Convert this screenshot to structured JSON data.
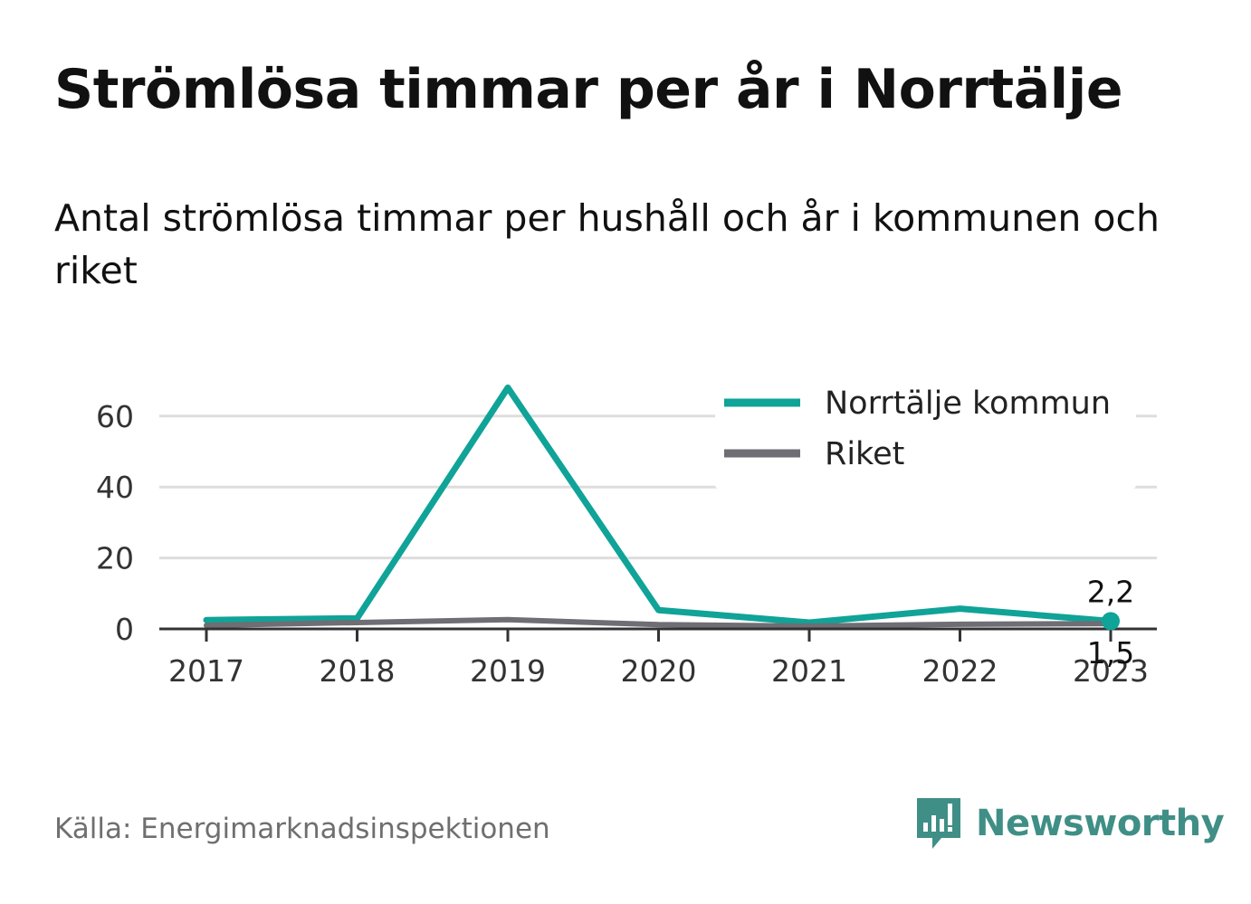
{
  "header": {
    "title": "Strömlösa timmar per år i Norrtälje",
    "subtitle": "Antal strömlösa timmar per hushåll och år i kommunen och riket"
  },
  "footer": {
    "source": "Källa: Energimarknadsinspektionen",
    "brand": "Newsworthy",
    "logo_icon": "bar-chart-speech-bubble-icon"
  },
  "colors": {
    "norrtalje": "#10a398",
    "riket": "#6e6e74",
    "grid": "#dddddd",
    "axis": "#333333",
    "brand": "#3f8f86"
  },
  "chart_data": {
    "type": "line",
    "x": [
      "2017",
      "2018",
      "2019",
      "2020",
      "2021",
      "2022",
      "2023"
    ],
    "series": [
      {
        "name": "Norrtälje kommun",
        "color": "#10a398",
        "values": [
          2.5,
          3.0,
          68.0,
          5.3,
          1.8,
          5.7,
          2.2
        ]
      },
      {
        "name": "Riket",
        "color": "#6e6e74",
        "values": [
          1.0,
          1.8,
          2.6,
          1.2,
          0.8,
          1.3,
          1.5
        ]
      }
    ],
    "yticks": [
      0,
      20,
      40,
      60
    ],
    "ylim": [
      0,
      68
    ],
    "grid": true,
    "legend_position": "top-right",
    "end_labels": [
      {
        "series": "Norrtälje kommun",
        "text": "2,2"
      },
      {
        "series": "Riket",
        "text": "1,5"
      }
    ]
  }
}
